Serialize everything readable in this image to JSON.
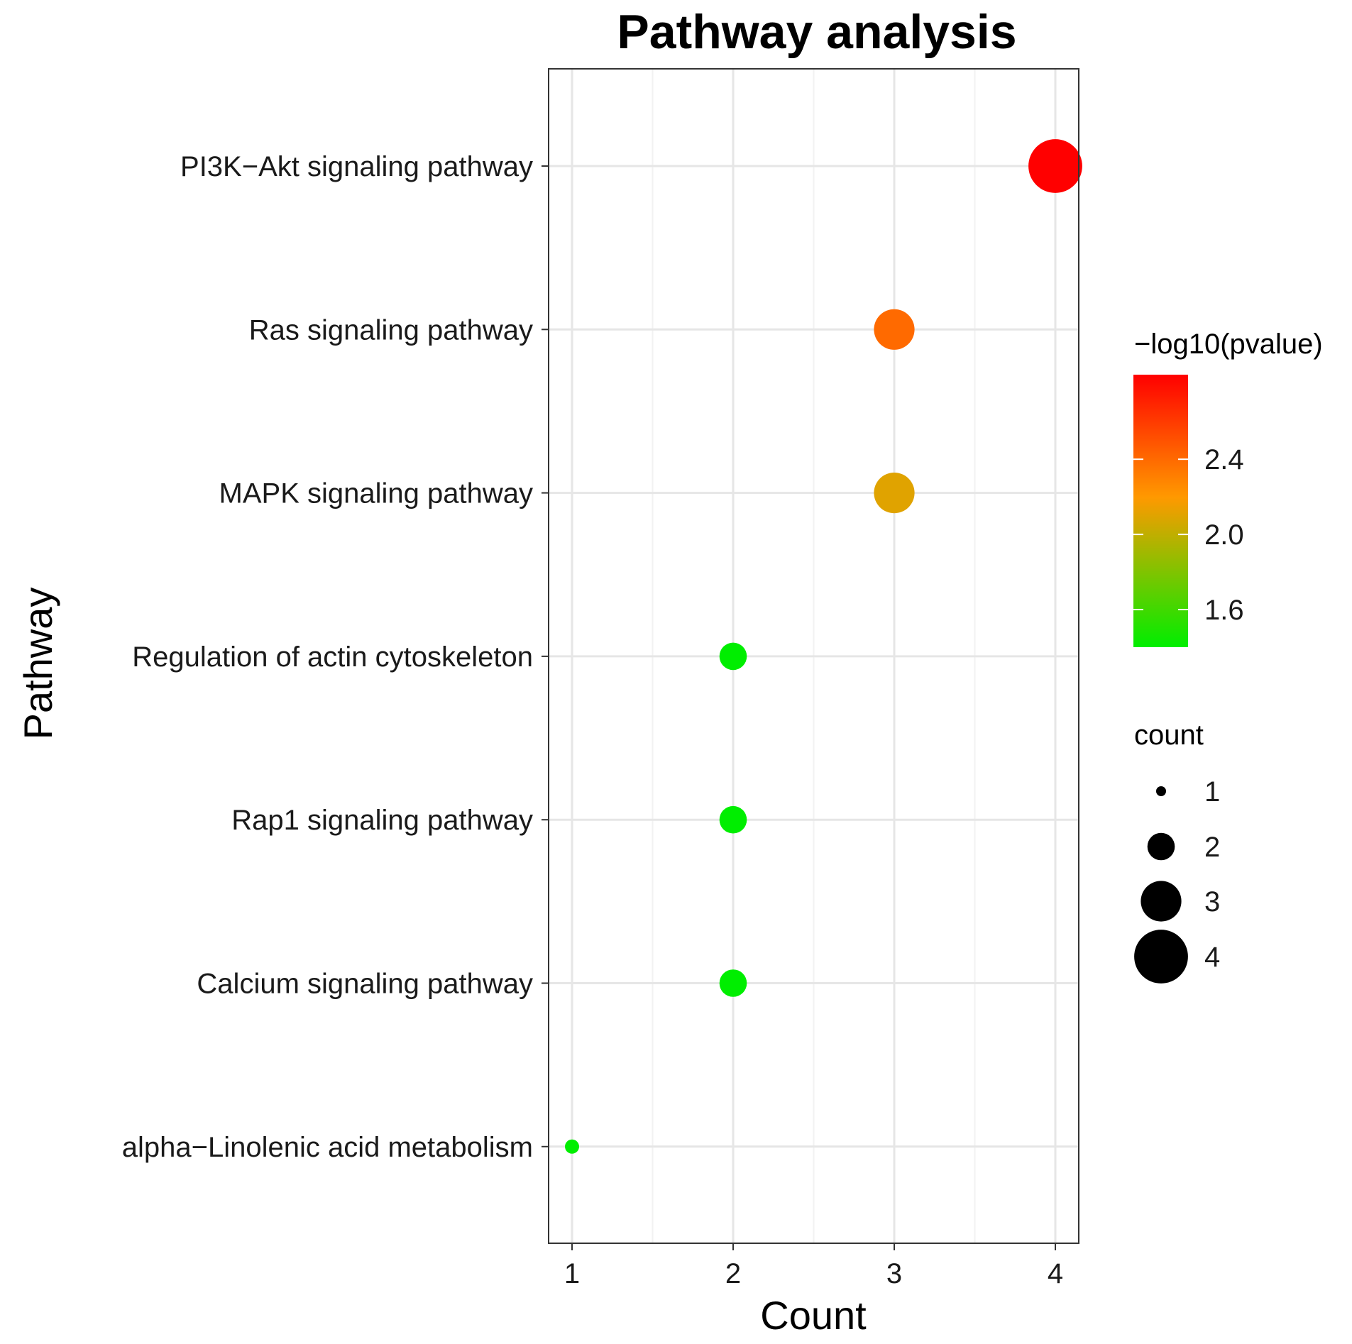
{
  "chart_data": {
    "type": "scatter",
    "title": "Pathway analysis",
    "xlabel": "Count",
    "ylabel": "Pathway",
    "xlim": [
      0.86,
      4.14
    ],
    "xticks": [
      1,
      2,
      3,
      4
    ],
    "xtick_labels": [
      "1",
      "2",
      "3",
      "4"
    ],
    "grid": true,
    "categories": [
      "PI3K−Akt signaling pathway",
      "Ras signaling pathway",
      "MAPK signaling pathway",
      "Regulation of actin cytoskeleton",
      "Rap1 signaling pathway",
      "Calcium signaling pathway",
      "alpha−Linolenic acid metabolism"
    ],
    "points": [
      {
        "pathway": "PI3K−Akt signaling pathway",
        "count": 4,
        "neg_log10_pvalue": 2.85
      },
      {
        "pathway": "Ras signaling pathway",
        "count": 3,
        "neg_log10_pvalue": 2.4
      },
      {
        "pathway": "MAPK signaling pathway",
        "count": 3,
        "neg_log10_pvalue": 2.1
      },
      {
        "pathway": "Regulation of actin cytoskeleton",
        "count": 2,
        "neg_log10_pvalue": 1.4
      },
      {
        "pathway": "Rap1 signaling pathway",
        "count": 2,
        "neg_log10_pvalue": 1.4
      },
      {
        "pathway": "Calcium signaling pathway",
        "count": 2,
        "neg_log10_pvalue": 1.4
      },
      {
        "pathway": "alpha−Linolenic acid metabolism",
        "count": 1,
        "neg_log10_pvalue": 1.4
      }
    ],
    "color_legend": {
      "title": "−log10(pvalue)",
      "min": 1.4,
      "max": 2.85,
      "low_color": "#00ee00",
      "mid_color": "#ff9900",
      "high_color": "#ff0000",
      "ticks": [
        1.6,
        2.0,
        2.4
      ],
      "tick_labels": [
        "1.6",
        "2.0",
        "2.4"
      ]
    },
    "size_legend": {
      "title": "count",
      "values": [
        1,
        2,
        3,
        4
      ],
      "labels": [
        "1",
        "2",
        "3",
        "4"
      ]
    },
    "legend_position": "right"
  }
}
